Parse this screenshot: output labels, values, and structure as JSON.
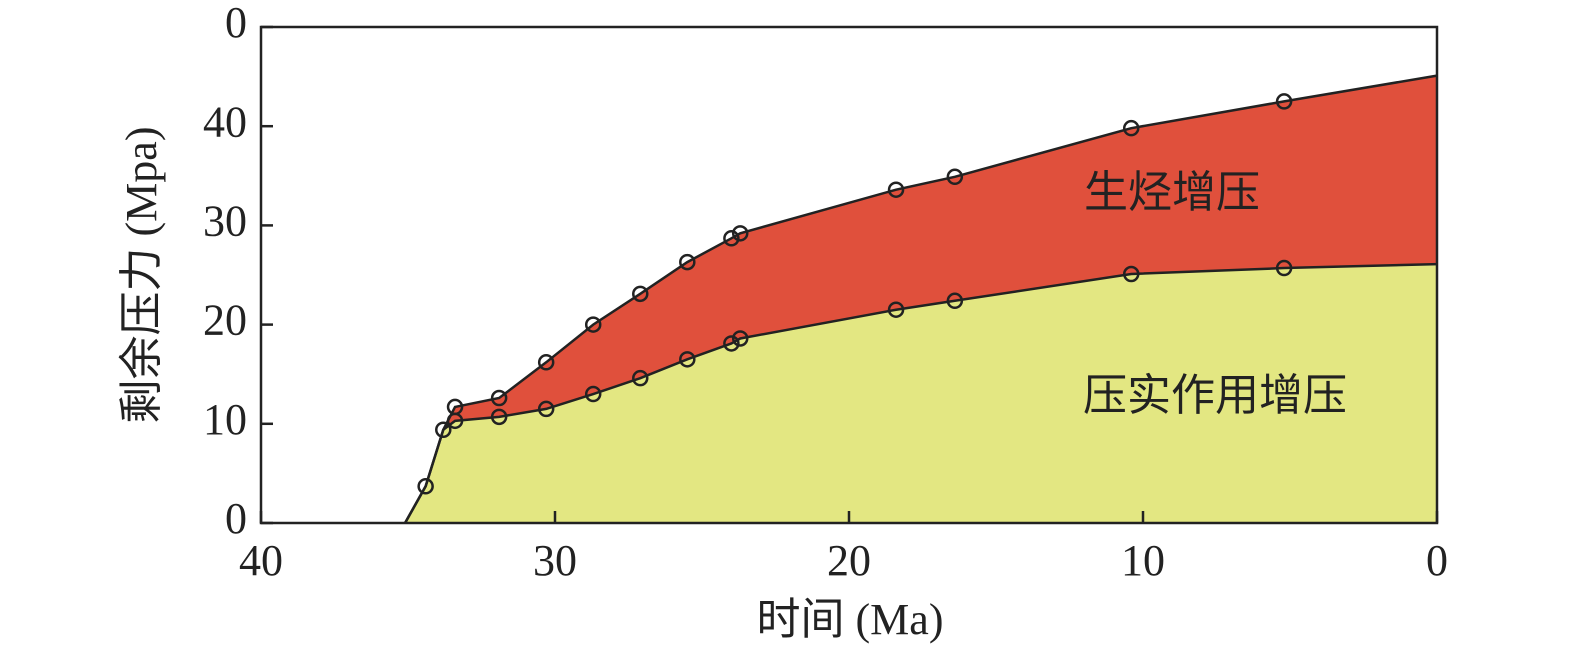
{
  "chart_data": {
    "type": "stacked-area",
    "x_label": "时间 (Ma)",
    "y_label": "剩余压力 (Mpa)",
    "x": [
      35.1,
      34.4,
      33.8,
      33.4,
      31.9,
      30.3,
      28.7,
      27.1,
      25.5,
      24.0,
      23.7,
      18.4,
      16.4,
      10.4,
      5.2,
      0
    ],
    "series": [
      {
        "name": "压实作用增压",
        "color": "#e3e782",
        "values": [
          0,
          3.7,
          9.4,
          10.3,
          10.7,
          11.5,
          13.0,
          14.6,
          16.5,
          18.1,
          18.6,
          21.5,
          22.4,
          25.1,
          25.7,
          26.1
        ]
      },
      {
        "name": "生烃增压",
        "color": "#e0503c",
        "values": [
          0,
          0,
          0,
          1.4,
          1.9,
          4.7,
          7.0,
          8.5,
          9.8,
          10.6,
          10.6,
          12.1,
          12.5,
          14.7,
          16.8,
          19.0
        ]
      }
    ],
    "xlim": [
      40,
      0
    ],
    "xticks": [
      40,
      30,
      20,
      10,
      0
    ],
    "ylim": [
      0,
      50
    ],
    "yticks": [
      0,
      10,
      20,
      30,
      40,
      {
        "value": 50,
        "label": "0"
      }
    ]
  }
}
